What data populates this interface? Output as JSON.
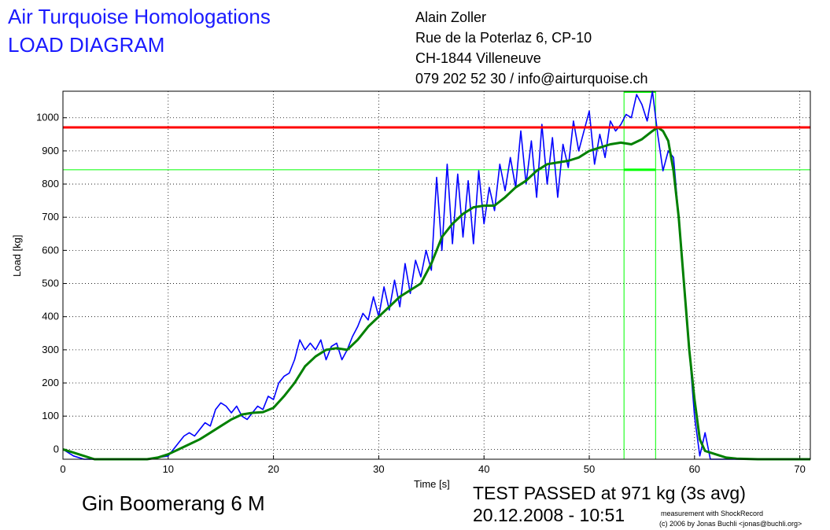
{
  "header": {
    "title_line1": "Air Turquoise Homologations",
    "title_line2": "LOAD DIAGRAM",
    "address": [
      "Alain Zoller",
      "Rue de la Poterlaz 6, CP-10",
      "CH-1844 Villeneuve",
      "079 202 52 30 / info@airturquoise.ch"
    ]
  },
  "footer": {
    "glider": "Gin Boomerang 6 M",
    "result": "TEST PASSED at 971 kg (3s avg)",
    "datetime": "20.12.2008 - 10:51",
    "credit_line1": "measurement with ShockRecord",
    "credit_line2": "(c) 2006 by Jonas Buchli <jonas@buchli.org>"
  },
  "colors": {
    "raw": "#0000ff",
    "avg": "#008000",
    "limit": "#ff0000",
    "window": "#00ff00",
    "title": "#1a1aff"
  },
  "chart_data": {
    "type": "line",
    "xlabel": "Time [s]",
    "ylabel": "Load [kg]",
    "xlim": [
      0,
      71
    ],
    "ylim": [
      -30,
      1080
    ],
    "xticks": [
      "0",
      "10",
      "20",
      "30",
      "40",
      "50",
      "60",
      "70"
    ],
    "yticks": [
      "0",
      "100",
      "200",
      "300",
      "400",
      "500",
      "600",
      "700",
      "800",
      "900",
      "1000"
    ],
    "grid": true,
    "reference_lines": {
      "max_avg": 971,
      "threshold": 843
    },
    "window": {
      "x_start": 53.3,
      "x_end": 56.3,
      "y_low": 843,
      "y_high": 1080
    },
    "series": [
      {
        "x": [
          0,
          0.5,
          1,
          2,
          3,
          4,
          6,
          8,
          9,
          10,
          10.5,
          11,
          11.5,
          12,
          12.5,
          13,
          13.5,
          14,
          14.5,
          15,
          15.5,
          16,
          16.5,
          17,
          17.5,
          18,
          18.5,
          19,
          19.5,
          20,
          20.5,
          21,
          21.5,
          22,
          22.5,
          23,
          23.5,
          24,
          24.5,
          25,
          25.5,
          26,
          26.5,
          27,
          27.5,
          28,
          28.5,
          29,
          29.5,
          30,
          30.5,
          31,
          31.5,
          32,
          32.5,
          33,
          33.5,
          34,
          34.5,
          35,
          35.5,
          36,
          36.5,
          37,
          37.5,
          38,
          38.5,
          39,
          39.5,
          40,
          40.5,
          41,
          41.5,
          42,
          42.5,
          43,
          43.5,
          44,
          44.5,
          45,
          45.5,
          46,
          46.5,
          47,
          47.5,
          48,
          48.5,
          49,
          49.5,
          50,
          50.5,
          51,
          51.5,
          52,
          52.5,
          53,
          53.5,
          54,
          54.5,
          55,
          55.5,
          56,
          56.5,
          57,
          57.5,
          58,
          58.5,
          59,
          59.5,
          60,
          60.5,
          61,
          61.5,
          62,
          63,
          65,
          68,
          71
        ],
        "values": [
          0,
          -10,
          -20,
          -30,
          -30,
          -30,
          -30,
          -30,
          -25,
          -20,
          0,
          20,
          40,
          50,
          40,
          60,
          80,
          70,
          120,
          140,
          130,
          110,
          130,
          100,
          90,
          110,
          130,
          120,
          160,
          150,
          200,
          220,
          230,
          270,
          330,
          300,
          320,
          300,
          330,
          270,
          310,
          320,
          270,
          300,
          340,
          370,
          410,
          390,
          460,
          400,
          490,
          420,
          510,
          430,
          560,
          470,
          570,
          520,
          600,
          540,
          820,
          600,
          860,
          620,
          830,
          640,
          810,
          620,
          840,
          680,
          790,
          720,
          860,
          780,
          880,
          790,
          960,
          800,
          930,
          760,
          980,
          800,
          940,
          760,
          920,
          850,
          990,
          900,
          960,
          1020,
          860,
          950,
          880,
          990,
          960,
          980,
          1010,
          1000,
          1070,
          1040,
          990,
          1080,
          950,
          840,
          900,
          880,
          700,
          500,
          300,
          100,
          -20,
          50,
          -30,
          -30,
          -30,
          -30,
          -30,
          -30
        ],
        "name": ""
      },
      {
        "x": [
          0,
          1,
          2,
          3,
          4,
          6,
          8,
          9,
          10,
          11,
          12,
          13,
          14,
          15,
          16,
          17,
          18,
          19,
          20,
          21,
          22,
          23,
          24,
          25,
          26,
          27,
          28,
          29,
          30,
          31,
          32,
          33,
          34,
          35,
          36,
          37,
          38,
          39,
          40,
          41,
          42,
          43,
          44,
          45,
          46,
          47,
          48,
          49,
          50,
          51,
          52,
          53,
          54,
          55,
          56,
          56.5,
          57,
          57.5,
          58,
          58.5,
          59,
          59.5,
          60,
          60.5,
          61,
          61.5,
          62,
          63,
          64,
          66,
          68,
          71
        ],
        "values": [
          0,
          -10,
          -20,
          -30,
          -30,
          -30,
          -30,
          -25,
          -15,
          0,
          15,
          30,
          50,
          70,
          90,
          105,
          110,
          112,
          125,
          160,
          200,
          250,
          280,
          300,
          305,
          300,
          330,
          370,
          400,
          430,
          460,
          480,
          500,
          560,
          640,
          680,
          710,
          730,
          735,
          735,
          760,
          790,
          810,
          840,
          860,
          865,
          870,
          880,
          900,
          910,
          920,
          925,
          920,
          935,
          960,
          971,
          960,
          930,
          840,
          700,
          500,
          300,
          150,
          30,
          -5,
          -10,
          -15,
          -25,
          -28,
          -30,
          -30,
          -30
        ],
        "name": ""
      }
    ]
  }
}
